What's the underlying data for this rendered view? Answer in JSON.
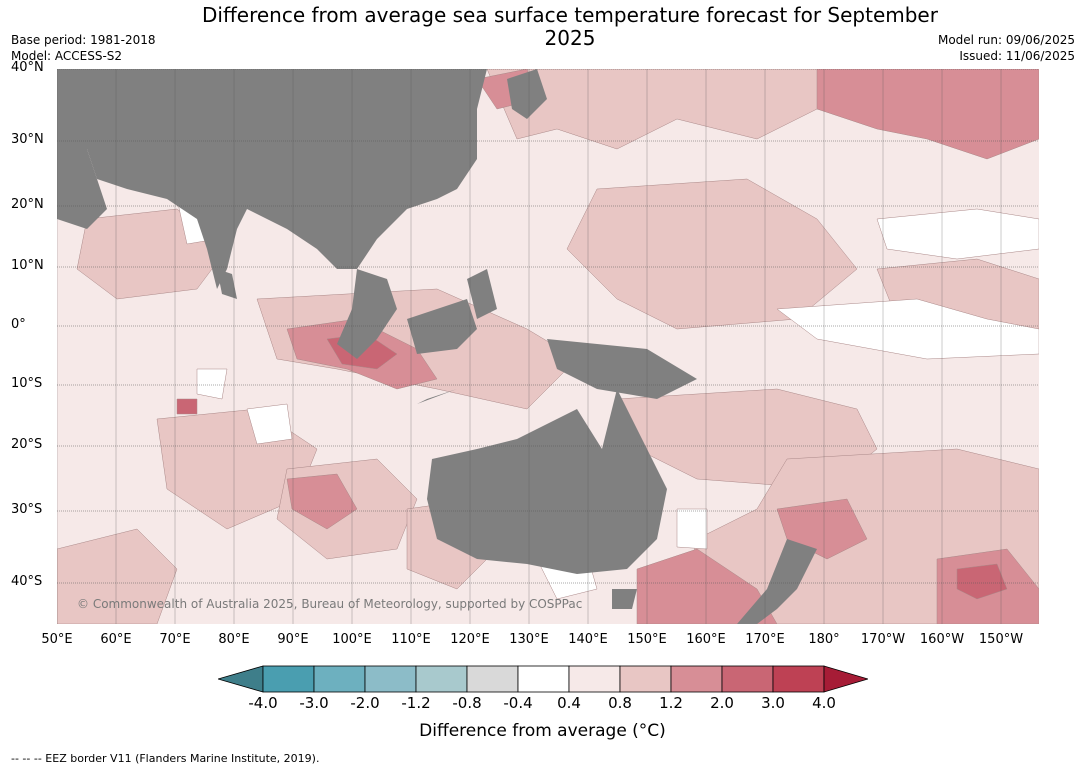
{
  "title": "Difference from average sea surface temperature forecast for September 2025",
  "meta": {
    "base_period": "Base period: 1981-2018",
    "model": "Model: ACCESS-S2",
    "model_run": "Model run: 09/06/2025",
    "issued": "Issued: 11/06/2025"
  },
  "map": {
    "lat_labels": [
      "40°N",
      "30°N",
      "20°N",
      "10°N",
      "0°",
      "10°S",
      "20°S",
      "30°S",
      "40°S"
    ],
    "lon_labels": [
      "50°E",
      "60°E",
      "70°E",
      "80°E",
      "90°E",
      "100°E",
      "110°E",
      "120°E",
      "130°E",
      "140°E",
      "150°E",
      "160°E",
      "170°E",
      "180°",
      "170°W",
      "160°W",
      "150°W"
    ],
    "copyright": "© Commonwealth of Australia 2025, Bureau of Meteorology, supported by COSPPac",
    "colors": {
      "land": "#808080",
      "anom_0_4_0_8": "#f6e9e8",
      "anom_0_8_1_2": "#e8c6c4",
      "anom_1_2_2_0": "#d78e96",
      "anom_2_0_3_0": "#c96674",
      "anom_neutral": "#ffffff"
    }
  },
  "colorbar": {
    "title": "Difference from average (°C)",
    "tick_labels": [
      "-4.0",
      "-3.0",
      "-2.0",
      "-1.2",
      "-0.8",
      "-0.4",
      "0.4",
      "0.8",
      "1.2",
      "2.0",
      "3.0",
      "4.0"
    ],
    "bins": [
      {
        "color": "#4a9eb0"
      },
      {
        "color": "#6db0bf"
      },
      {
        "color": "#8cbcc8"
      },
      {
        "color": "#a8c9cd"
      },
      {
        "color": "#d9d9d9"
      },
      {
        "color": "#ffffff"
      },
      {
        "color": "#f6e9e8"
      },
      {
        "color": "#e8c6c4"
      },
      {
        "color": "#d78e96"
      },
      {
        "color": "#c96674"
      },
      {
        "color": "#be4154"
      }
    ],
    "extend_low_color": "#3e7e8a",
    "extend_high_color": "#a61c36"
  },
  "footer": "--  --  -- EEZ border V11 (Flanders Marine Institute, 2019)."
}
